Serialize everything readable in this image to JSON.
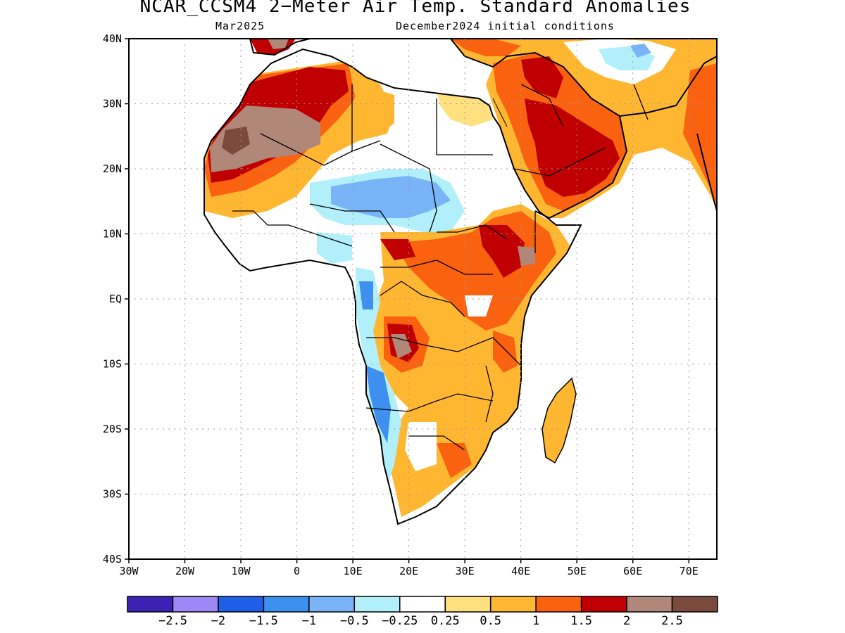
{
  "title": "NCAR_CCSM4 2−Meter Air Temp. Standard Anomalies",
  "valid_month": "Mar2025",
  "init": "December2024 initial conditions",
  "lat_labels": [
    "40N",
    "30N",
    "20N",
    "10N",
    "EQ",
    "10S",
    "20S",
    "30S",
    "40S"
  ],
  "lon_labels": [
    "30W",
    "20W",
    "10W",
    "0",
    "10E",
    "20E",
    "30E",
    "40E",
    "50E",
    "60E",
    "70E"
  ],
  "colorbar": {
    "colors": [
      "#3b22b4",
      "#9d88f6",
      "#1f5fe8",
      "#3d8ff0",
      "#78b4f7",
      "#b1effa",
      "#ffffff",
      "#ffe07f",
      "#ffb732",
      "#fa6210",
      "#c00000",
      "#b08778",
      "#7b4a3c"
    ],
    "labels": [
      "−2.5",
      "−2",
      "−1.5",
      "−1",
      "−0.5",
      "−0.25",
      "0.25",
      "0.5",
      "1",
      "1.5",
      "2",
      "2.5"
    ]
  },
  "colors": {
    "land_neutral": "#ffffff",
    "coast": "#000000",
    "grid": "#9a9a9a"
  }
}
